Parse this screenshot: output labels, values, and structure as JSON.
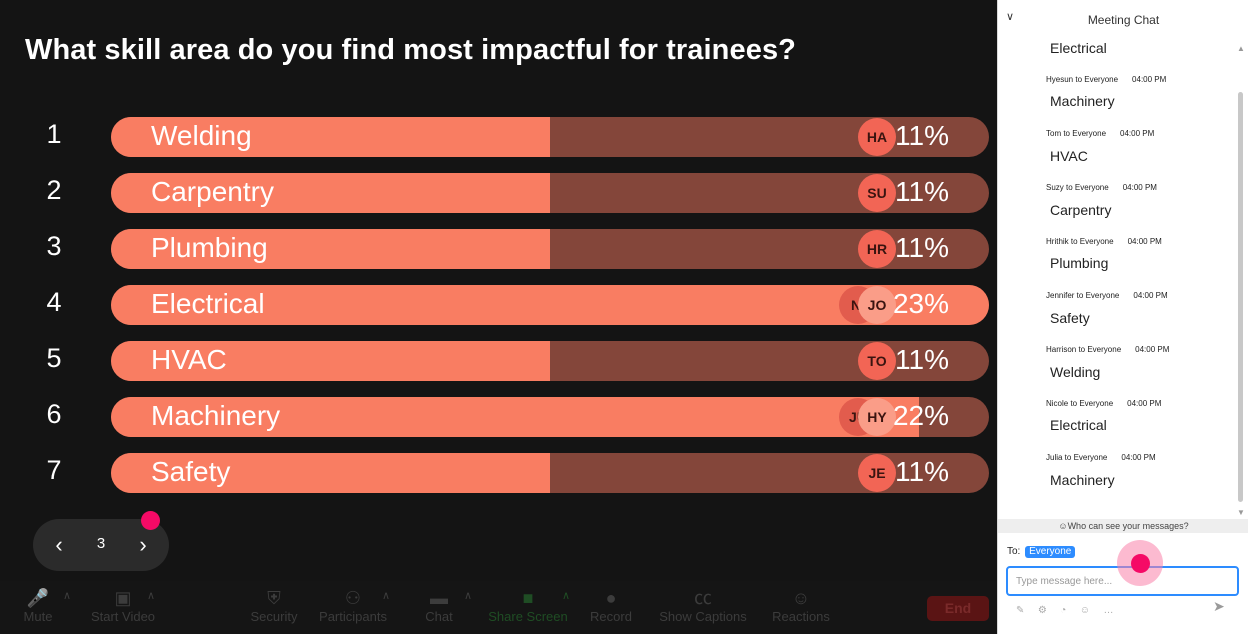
{
  "poll": {
    "question": "What skill area do you find most impactful for trainees?",
    "options": [
      {
        "num": "1",
        "label": "Welding",
        "pct": "11%",
        "fill": 0.5,
        "avatars": [
          "HA"
        ]
      },
      {
        "num": "2",
        "label": "Carpentry",
        "pct": "11%",
        "fill": 0.5,
        "avatars": [
          "SU"
        ]
      },
      {
        "num": "3",
        "label": "Plumbing",
        "pct": "11%",
        "fill": 0.5,
        "avatars": [
          "HR"
        ]
      },
      {
        "num": "4",
        "label": "Electrical",
        "pct": "23%",
        "fill": 1.0,
        "avatars": [
          "NI",
          "JO"
        ]
      },
      {
        "num": "5",
        "label": "HVAC",
        "pct": "11%",
        "fill": 0.5,
        "avatars": [
          "TO"
        ]
      },
      {
        "num": "6",
        "label": "Machinery",
        "pct": "22%",
        "fill": 0.92,
        "avatars": [
          "JU",
          "HY"
        ]
      },
      {
        "num": "7",
        "label": "Safety",
        "pct": "11%",
        "fill": 0.5,
        "avatars": [
          "JE"
        ]
      }
    ]
  },
  "pager": {
    "page": "3",
    "prev_icon": "chevron-left-icon",
    "next_icon": "chevron-right-icon"
  },
  "toolbar": {
    "mute": "Mute",
    "start_video": "Start Video",
    "security": "Security",
    "participants": "Participants",
    "chat": "Chat",
    "share_screen": "Share Screen",
    "record": "Record",
    "show_captions": "Show Captions",
    "reactions": "Reactions",
    "end": "End"
  },
  "chat": {
    "title": "Meeting Chat",
    "messages": [
      {
        "sender": "",
        "time": "",
        "text": "Electrical"
      },
      {
        "sender": "Hyesun to Everyone",
        "time": "04:00 PM",
        "text": "Machinery"
      },
      {
        "sender": "Tom to Everyone",
        "time": "04:00 PM",
        "text": "HVAC"
      },
      {
        "sender": "Suzy to Everyone",
        "time": "04:00 PM",
        "text": "Carpentry"
      },
      {
        "sender": "Hrithik to Everyone",
        "time": "04:00 PM",
        "text": "Plumbing"
      },
      {
        "sender": "Jennifer to Everyone",
        "time": "04:00 PM",
        "text": "Safety"
      },
      {
        "sender": "Harrison to Everyone",
        "time": "04:00 PM",
        "text": "Welding"
      },
      {
        "sender": "Nicole to Everyone",
        "time": "04:00 PM",
        "text": "Electrical"
      },
      {
        "sender": "Julia to Everyone",
        "time": "04:00 PM",
        "text": "Machinery"
      }
    ],
    "who_can_see": "Who can see your messages?",
    "to_label": "To:",
    "to_value": "Everyone",
    "input_placeholder": "Type message here..."
  },
  "colors": {
    "bar_fill": "#f97d62",
    "bar_track": "#84463a",
    "avatar": "#f26555",
    "accent": "#2d8cff",
    "click_marker": "#f50a66"
  }
}
